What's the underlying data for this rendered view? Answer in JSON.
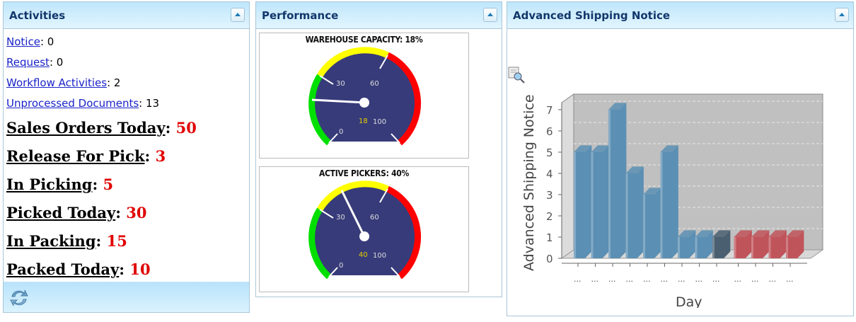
{
  "activities": {
    "title": "Activities",
    "links": [
      {
        "label": "Notice",
        "value": ": 0"
      },
      {
        "label": "Request",
        "value": ": 0"
      },
      {
        "label": "Workflow Activities",
        "value": ": 2"
      },
      {
        "label": "Unprocessed Documents",
        "value": ": 13"
      }
    ],
    "metrics": [
      {
        "label": "Sales Orders Today",
        "sep": ": ",
        "value": "50"
      },
      {
        "label": "Release For Pick",
        "sep": ": ",
        "value": "3"
      },
      {
        "label": "In Picking",
        "sep": ": ",
        "value": "5"
      },
      {
        "label": "Picked Today",
        "sep": ": ",
        "value": "30"
      },
      {
        "label": "In Packing",
        "sep": ": ",
        "value": "15"
      },
      {
        "label": "Packed Today",
        "sep": ": ",
        "value": "10"
      }
    ],
    "refresh_icon": "refresh-icon"
  },
  "performance": {
    "title": "Performance",
    "gauges": [
      {
        "title": "WAREHOUSE CAPACITY: 18%",
        "value": 18,
        "value_label": "18",
        "ticks": [
          "0",
          "30",
          "60",
          "100"
        ]
      },
      {
        "title": "ACTIVE PICKERS: 40%",
        "value": 40,
        "value_label": "40",
        "ticks": [
          "0",
          "30",
          "60",
          "100"
        ]
      }
    ],
    "colors": {
      "dial": "#373b7a",
      "green": "#00e000",
      "yellow": "#ffff00",
      "red": "#ff0000",
      "value_text": "#e8d000"
    }
  },
  "asn": {
    "title": "Advanced Shipping Notice",
    "zoom_icon": "magnifier-icon"
  },
  "chart_data": {
    "type": "bar",
    "title": "",
    "xlabel": "Day",
    "ylabel": "Advanced Shipping Notice",
    "ylim": [
      0,
      7
    ],
    "yticks": [
      "0",
      "1",
      "2",
      "3",
      "4",
      "5",
      "6",
      "7"
    ],
    "categories": [
      "...",
      "...",
      "...",
      "...",
      "...",
      "...",
      "...",
      "...",
      "...",
      "...",
      "...",
      "...",
      "..."
    ],
    "values": [
      5,
      5,
      7,
      4,
      3,
      5,
      1,
      1,
      1,
      1,
      1,
      1,
      1
    ],
    "bar_colors": [
      "#5b8fb3",
      "#5b8fb3",
      "#5b8fb3",
      "#5b8fb3",
      "#5b8fb3",
      "#5b8fb3",
      "#5b8fb3",
      "#5b8fb3",
      "#4a5f70",
      "#c0545b",
      "#c0545b",
      "#c0545b",
      "#c0545b"
    ],
    "grid": true,
    "style": "3d"
  }
}
